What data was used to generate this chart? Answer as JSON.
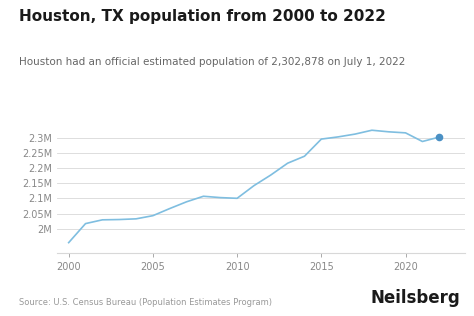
{
  "title": "Houston, TX population from 2000 to 2022",
  "subtitle": "Houston had an official estimated population of 2,302,878 on July 1, 2022",
  "source": "Source: U.S. Census Bureau (Population Estimates Program)",
  "branding": "Neilsberg",
  "years": [
    2000,
    2001,
    2002,
    2003,
    2004,
    2005,
    2006,
    2007,
    2008,
    2009,
    2010,
    2011,
    2012,
    2013,
    2014,
    2015,
    2016,
    2017,
    2018,
    2019,
    2020,
    2021,
    2022
  ],
  "population": [
    1953631,
    2016582,
    2029074,
    2030052,
    2032339,
    2042839,
    2066403,
    2088786,
    2107037,
    2102629,
    2100263,
    2142221,
    2177376,
    2216460,
    2239558,
    2296224,
    2303482,
    2312717,
    2325502,
    2320268,
    2316797,
    2288250,
    2302878
  ],
  "line_color": "#7fbee0",
  "dot_color": "#4a90c4",
  "background_color": "#ffffff",
  "grid_color": "#d8d8d8",
  "title_fontsize": 11,
  "subtitle_fontsize": 7.5,
  "tick_fontsize": 7,
  "source_fontsize": 6,
  "branding_fontsize": 12,
  "ylim_min": 1920000,
  "ylim_max": 2380000,
  "yticks": [
    2000000,
    2050000,
    2100000,
    2150000,
    2200000,
    2250000,
    2300000
  ],
  "ytick_labels": [
    "2M",
    "2.05M",
    "2.1M",
    "2.15M",
    "2.2M",
    "2.25M",
    "2.3M"
  ],
  "xticks": [
    2000,
    2005,
    2010,
    2015,
    2020
  ],
  "xlim_min": 1999.3,
  "xlim_max": 2023.5
}
